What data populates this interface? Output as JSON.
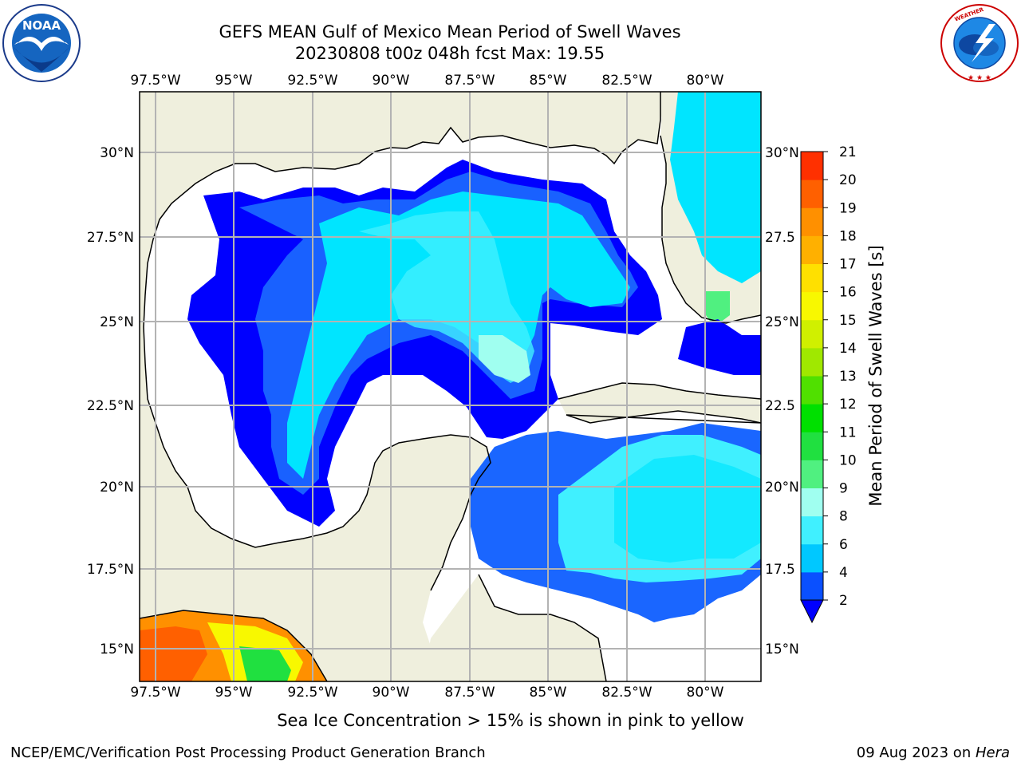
{
  "header": {
    "title_line1": "GEFS MEAN Gulf of Mexico Mean Period of Swell Waves",
    "title_line2": "20230808 t00z 048h fcst   Max: 19.55"
  },
  "logos": {
    "left": "NOAA",
    "left_ring_text": "NATIONAL OCEANIC AND ATMOSPHERIC ADMINISTRATION · U.S. DEPARTMENT OF COMMERCE",
    "right_ring_text": "NATIONAL WEATHER SERVICE"
  },
  "map": {
    "lon_ticks": [
      "97.5°W",
      "95°W",
      "92.5°W",
      "90°W",
      "87.5°W",
      "85°W",
      "82.5°W",
      "80°W"
    ],
    "lat_ticks_left": [
      "30°N",
      "27.5°N",
      "25°N",
      "22.5°N",
      "20°N",
      "17.5°N",
      "15°N"
    ],
    "lat_ticks_right": [
      "30°N",
      "27.5",
      "25°N",
      "22.5",
      "20°N",
      "17.5",
      "15°N"
    ],
    "colors": {
      "land": "#efefdd",
      "grid": "#b3b3b3",
      "coast": "#000000"
    }
  },
  "colorbar": {
    "label": "Mean Period of Swell Waves [s]",
    "ticks": [
      "2",
      "4",
      "6",
      "8",
      "9",
      "10",
      "11",
      "12",
      "13",
      "14",
      "15",
      "16",
      "17",
      "18",
      "19",
      "20",
      "21"
    ],
    "colors": [
      "#0a50ff",
      "#00c8ff",
      "#40f0ff",
      "#a0fff0",
      "#50f080",
      "#20e040",
      "#00e000",
      "#50e000",
      "#a0e800",
      "#d0f000",
      "#f8f800",
      "#ffe000",
      "#ffb000",
      "#ff9000",
      "#ff6000",
      "#ff3000",
      "#ff0000"
    ],
    "extend_color": "#0000ff"
  },
  "note": "Sea Ice Concentration > 15% is shown in pink to yellow",
  "footer": {
    "left": "NCEP/EMC/Verification Post Processing Product Generation Branch",
    "right_date": "09 Aug 2023 on ",
    "right_machine": "Hera"
  }
}
